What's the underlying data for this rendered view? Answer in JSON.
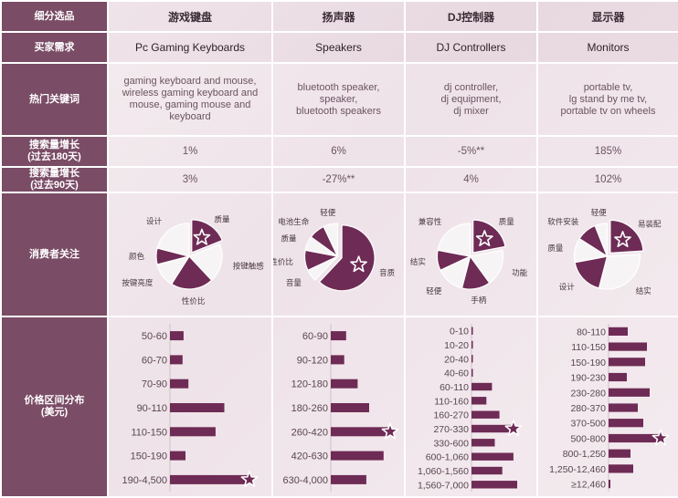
{
  "header": {
    "label": "细分选品",
    "categories_cn": [
      "游戏键盘",
      "扬声器",
      "DJ控制器",
      "显示器"
    ]
  },
  "rows": {
    "buyer_need": {
      "label": "买家需求",
      "values": [
        "Pc Gaming Keyboards",
        "Speakers",
        "DJ Controllers",
        "Monitors"
      ]
    },
    "hot_keywords": {
      "label": "热门关键词",
      "values": [
        [
          "gaming keyboard and mouse,",
          "wireless gaming keyboard and",
          "mouse, gaming mouse and",
          "keyboard"
        ],
        [
          "bluetooth speaker,",
          "speaker,",
          "bluetooth speakers"
        ],
        [
          "dj controller,",
          "dj equipment,",
          "dj mixer"
        ],
        [
          "portable tv,",
          "lg stand by me tv,",
          "portable tv on wheels"
        ]
      ]
    },
    "growth_180": {
      "label": [
        "搜索量增长",
        "(过去180天)"
      ],
      "values": [
        "1%",
        "6%",
        "-5%**",
        "185%"
      ]
    },
    "growth_90": {
      "label": [
        "搜索量增长",
        "(过去90天)"
      ],
      "values": [
        "3%",
        "-27%**",
        "4%",
        "102%"
      ]
    },
    "consumer_focus": {
      "label": "消费者关注"
    },
    "price_dist": {
      "label": [
        "价格区间分布",
        "(美元)"
      ]
    }
  },
  "colors": {
    "accent": "#6e2b55",
    "light_slice": "#f7f4f6",
    "label_bg": "#7a4c65",
    "star": "#ffffff"
  },
  "chart_data": [
    {
      "type": "pie",
      "title": "游戏键盘",
      "labels": [
        "质量",
        "按键触感",
        "性价比",
        "按键亮度",
        "颜色",
        "设计"
      ],
      "values": [
        19,
        19,
        21,
        12,
        8,
        21
      ],
      "highlight": "质量"
    },
    {
      "type": "pie",
      "title": "扬声器",
      "labels": [
        "音质",
        "音量",
        "性价比",
        "质量",
        "电池生命",
        "轻便"
      ],
      "values": [
        62,
        6,
        10,
        7,
        8,
        7
      ],
      "highlight": "音质"
    },
    {
      "type": "pie",
      "title": "DJ控制器",
      "labels": [
        "质量",
        "功能",
        "手柄",
        "轻便",
        "结实",
        "兼容性"
      ],
      "values": [
        22,
        18,
        14,
        14,
        10,
        22
      ],
      "highlight": "质量"
    },
    {
      "type": "pie",
      "title": "显示器",
      "labels": [
        "易装配",
        "结实",
        "设计",
        "质量",
        "软件安装",
        "轻便"
      ],
      "values": [
        24,
        30,
        18,
        12,
        10,
        6
      ],
      "highlight": "易装配"
    },
    {
      "type": "bar",
      "orientation": "horizontal",
      "title": "游戏键盘",
      "categories": [
        "50-60",
        "60-70",
        "70-90",
        "90-110",
        "110-150",
        "150-190",
        "190-4,500"
      ],
      "values": [
        14,
        13,
        19,
        56,
        47,
        16,
        80
      ],
      "highlight": "190-4,500"
    },
    {
      "type": "bar",
      "orientation": "horizontal",
      "title": "扬声器",
      "categories": [
        "60-90",
        "90-120",
        "120-180",
        "180-260",
        "260-420",
        "420-630",
        "630-4,000"
      ],
      "values": [
        16,
        14,
        28,
        40,
        60,
        55,
        37
      ],
      "highlight": "260-420"
    },
    {
      "type": "bar",
      "orientation": "horizontal",
      "title": "DJ控制器",
      "categories": [
        "0-10",
        "10-20",
        "20-40",
        "40-60",
        "60-110",
        "110-160",
        "160-270",
        "270-330",
        "330-600",
        "600-1,060",
        "1,060-1,560",
        "1,560-7,000"
      ],
      "values": [
        1,
        1,
        1,
        1,
        22,
        16,
        30,
        43,
        25,
        45,
        33,
        49
      ],
      "highlight": "270-330"
    },
    {
      "type": "bar",
      "orientation": "horizontal",
      "title": "显示器",
      "categories": [
        "80-110",
        "110-150",
        "150-190",
        "190-230",
        "230-280",
        "280-370",
        "370-500",
        "500-800",
        "800-1,250",
        "1,250-12,460",
        "≥12,460"
      ],
      "values": [
        21,
        42,
        40,
        20,
        45,
        32,
        38,
        55,
        24,
        27,
        2
      ],
      "highlight": "500-800"
    }
  ]
}
